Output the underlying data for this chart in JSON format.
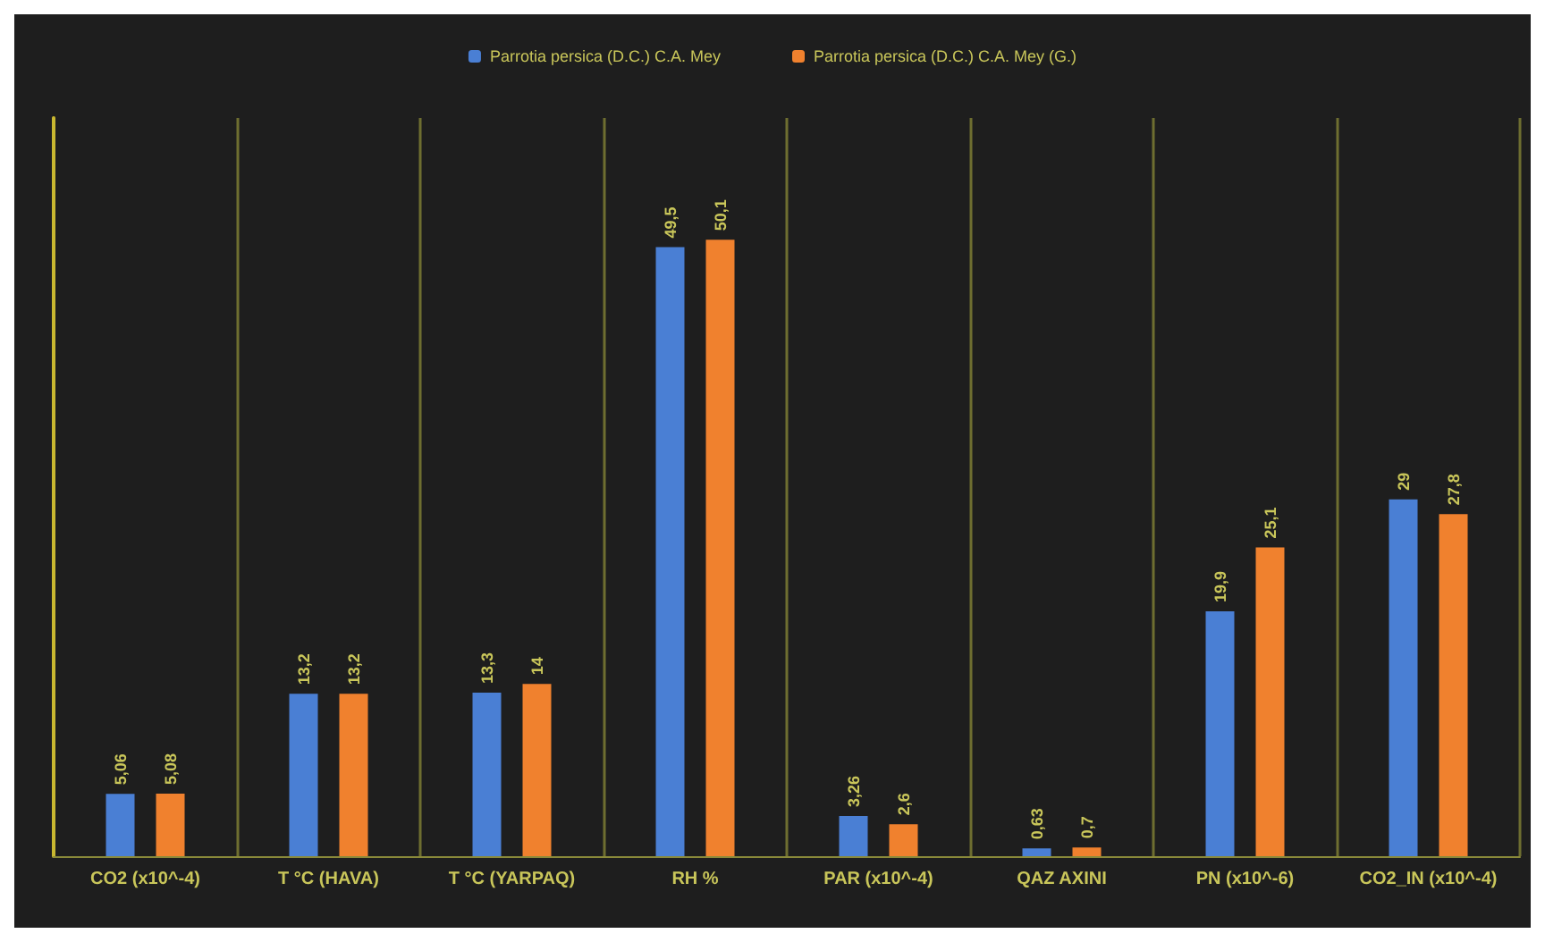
{
  "chart_data": {
    "type": "bar",
    "categories": [
      "CO2 (x10^-4)",
      "T °C (HAVA)",
      "T °C (YARPAQ)",
      "RH %",
      "PAR (x10^-4)",
      "QAZ AXINI",
      "PN (x10^-6)",
      "CO2_IN (x10^-4)"
    ],
    "series": [
      {
        "name": "Parrotia persica (D.C.) C.A. Mey",
        "color": "#4a7fd4",
        "values": [
          5.06,
          13.2,
          13.3,
          49.5,
          3.26,
          0.63,
          19.9,
          29
        ],
        "value_labels": [
          "5,06",
          "13,2",
          "13,3",
          "49,5",
          "3,26",
          "0,63",
          "19,9",
          "29"
        ]
      },
      {
        "name": "Parrotia persica (D.C.) C.A. Mey (G.)",
        "color": "#f0812e",
        "values": [
          5.08,
          13.2,
          14,
          50.1,
          2.6,
          0.7,
          25.1,
          27.8
        ],
        "value_labels": [
          "5,08",
          "13,2",
          "14",
          "50,1",
          "2,6",
          "0,7",
          "25,1",
          "27,8"
        ]
      }
    ],
    "grid": "x",
    "legend": "top"
  }
}
